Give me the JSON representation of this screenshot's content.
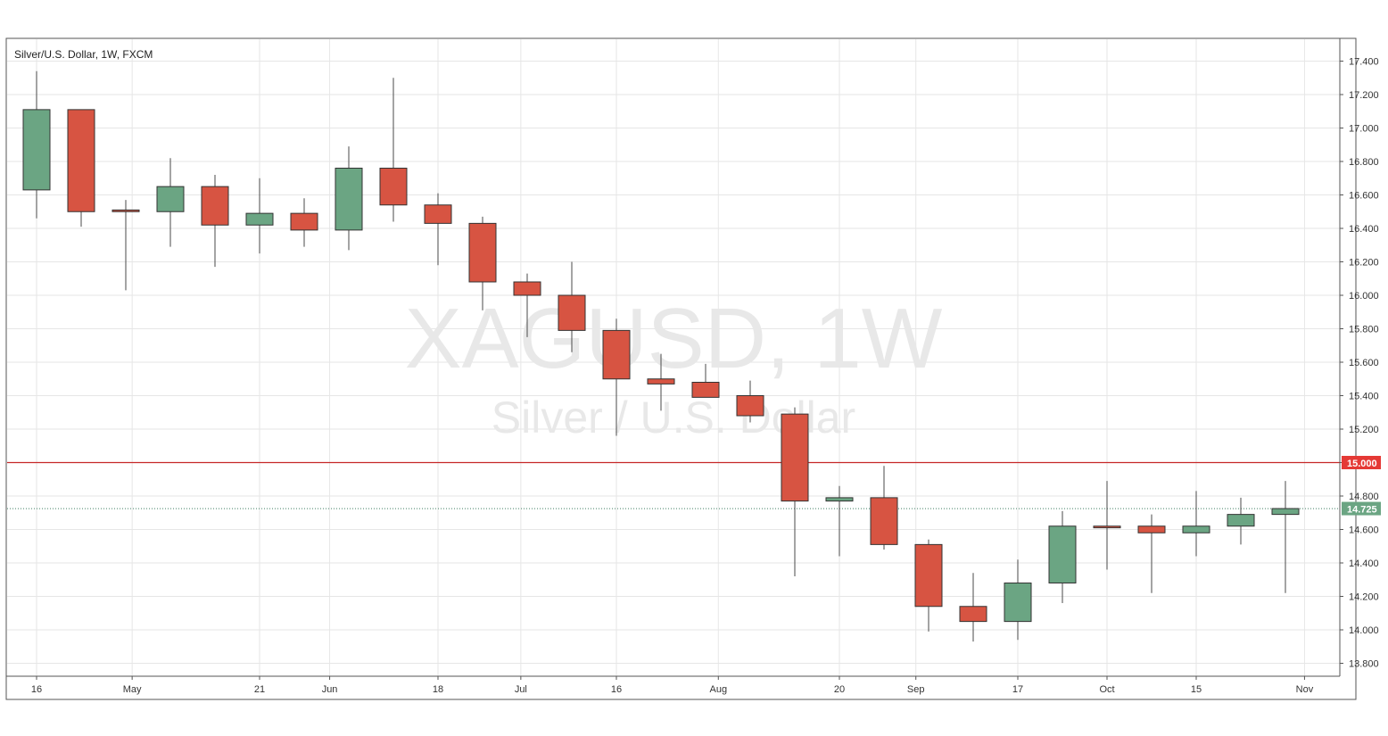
{
  "header": {
    "symbol_description": "Silver/U.S. Dollar, 1W, FXCM"
  },
  "watermark": {
    "line1": "XAGUSD, 1W",
    "line2": "Silver / U.S. Dollar"
  },
  "colors": {
    "up": "#6ba583",
    "down": "#d75442",
    "wick": "#4a4a4a",
    "grid": "#e6e6e6",
    "level_line": "#c62828",
    "current_price_line": "#3f7f62"
  },
  "chart_data": {
    "type": "candlestick",
    "title": "Silver/U.S. Dollar, 1W, FXCM",
    "xlabel": "",
    "ylabel": "",
    "ylim": [
      13.75,
      17.5
    ],
    "grid": true,
    "legend": "none",
    "y_ticks": [
      "13.800",
      "14.000",
      "14.200",
      "14.400",
      "14.600",
      "14.800",
      "15.000",
      "15.200",
      "15.400",
      "15.600",
      "15.800",
      "16.000",
      "16.200",
      "16.400",
      "16.600",
      "16.800",
      "17.000",
      "17.200",
      "17.400"
    ],
    "x_ticks": [
      {
        "label": "16",
        "date": "2018-04-16"
      },
      {
        "label": "May",
        "date": "2018-05-01"
      },
      {
        "label": "21",
        "date": "2018-05-21"
      },
      {
        "label": "Jun",
        "date": "2018-06-01"
      },
      {
        "label": "18",
        "date": "2018-06-18"
      },
      {
        "label": "Jul",
        "date": "2018-07-01"
      },
      {
        "label": "16",
        "date": "2018-07-16"
      },
      {
        "label": "Aug",
        "date": "2018-08-01"
      },
      {
        "label": "20",
        "date": "2018-08-20"
      },
      {
        "label": "Sep",
        "date": "2018-09-01"
      },
      {
        "label": "17",
        "date": "2018-09-17"
      },
      {
        "label": "Oct",
        "date": "2018-10-01"
      },
      {
        "label": "15",
        "date": "2018-10-15"
      },
      {
        "label": "Nov",
        "date": "2018-11-01"
      }
    ],
    "candles": [
      {
        "date": "2018-04-16",
        "open": 16.63,
        "high": 17.34,
        "low": 16.46,
        "close": 17.11
      },
      {
        "date": "2018-04-23",
        "open": 17.11,
        "high": 17.11,
        "low": 16.41,
        "close": 16.5
      },
      {
        "date": "2018-04-30",
        "open": 16.51,
        "high": 16.57,
        "low": 16.03,
        "close": 16.5
      },
      {
        "date": "2018-05-07",
        "open": 16.5,
        "high": 16.82,
        "low": 16.29,
        "close": 16.65
      },
      {
        "date": "2018-05-14",
        "open": 16.65,
        "high": 16.72,
        "low": 16.17,
        "close": 16.42
      },
      {
        "date": "2018-05-21",
        "open": 16.42,
        "high": 16.7,
        "low": 16.25,
        "close": 16.49
      },
      {
        "date": "2018-05-28",
        "open": 16.49,
        "high": 16.58,
        "low": 16.29,
        "close": 16.39
      },
      {
        "date": "2018-06-04",
        "open": 16.39,
        "high": 16.89,
        "low": 16.27,
        "close": 16.76
      },
      {
        "date": "2018-06-11",
        "open": 16.76,
        "high": 17.3,
        "low": 16.44,
        "close": 16.54
      },
      {
        "date": "2018-06-18",
        "open": 16.54,
        "high": 16.61,
        "low": 16.18,
        "close": 16.43
      },
      {
        "date": "2018-06-25",
        "open": 16.43,
        "high": 16.47,
        "low": 15.91,
        "close": 16.08
      },
      {
        "date": "2018-07-02",
        "open": 16.08,
        "high": 16.13,
        "low": 15.75,
        "close": 16.0
      },
      {
        "date": "2018-07-09",
        "open": 16.0,
        "high": 16.2,
        "low": 15.66,
        "close": 15.79
      },
      {
        "date": "2018-07-16",
        "open": 15.79,
        "high": 15.86,
        "low": 15.16,
        "close": 15.5
      },
      {
        "date": "2018-07-23",
        "open": 15.5,
        "high": 15.65,
        "low": 15.31,
        "close": 15.47
      },
      {
        "date": "2018-07-30",
        "open": 15.48,
        "high": 15.59,
        "low": 15.39,
        "close": 15.39
      },
      {
        "date": "2018-08-06",
        "open": 15.4,
        "high": 15.49,
        "low": 15.24,
        "close": 15.28
      },
      {
        "date": "2018-08-13",
        "open": 15.29,
        "high": 15.33,
        "low": 14.32,
        "close": 14.77
      },
      {
        "date": "2018-08-20",
        "open": 14.77,
        "high": 14.86,
        "low": 14.44,
        "close": 14.79
      },
      {
        "date": "2018-08-27",
        "open": 14.79,
        "high": 14.98,
        "low": 14.48,
        "close": 14.51
      },
      {
        "date": "2018-09-03",
        "open": 14.51,
        "high": 14.54,
        "low": 13.99,
        "close": 14.14
      },
      {
        "date": "2018-09-10",
        "open": 14.14,
        "high": 14.34,
        "low": 13.93,
        "close": 14.05
      },
      {
        "date": "2018-09-17",
        "open": 14.05,
        "high": 14.42,
        "low": 13.94,
        "close": 14.28
      },
      {
        "date": "2018-09-24",
        "open": 14.28,
        "high": 14.71,
        "low": 14.16,
        "close": 14.62
      },
      {
        "date": "2018-10-01",
        "open": 14.62,
        "high": 14.89,
        "low": 14.36,
        "close": 14.61
      },
      {
        "date": "2018-10-08",
        "open": 14.62,
        "high": 14.69,
        "low": 14.22,
        "close": 14.58
      },
      {
        "date": "2018-10-15",
        "open": 14.58,
        "high": 14.83,
        "low": 14.44,
        "close": 14.62
      },
      {
        "date": "2018-10-22",
        "open": 14.62,
        "high": 14.79,
        "low": 14.51,
        "close": 14.69
      },
      {
        "date": "2018-10-29",
        "open": 14.69,
        "high": 14.89,
        "low": 14.22,
        "close": 14.725
      }
    ],
    "horizontal_line": {
      "value": 15.0,
      "label": "15.000"
    },
    "current_price": {
      "value": 14.725,
      "label": "14.725"
    }
  }
}
